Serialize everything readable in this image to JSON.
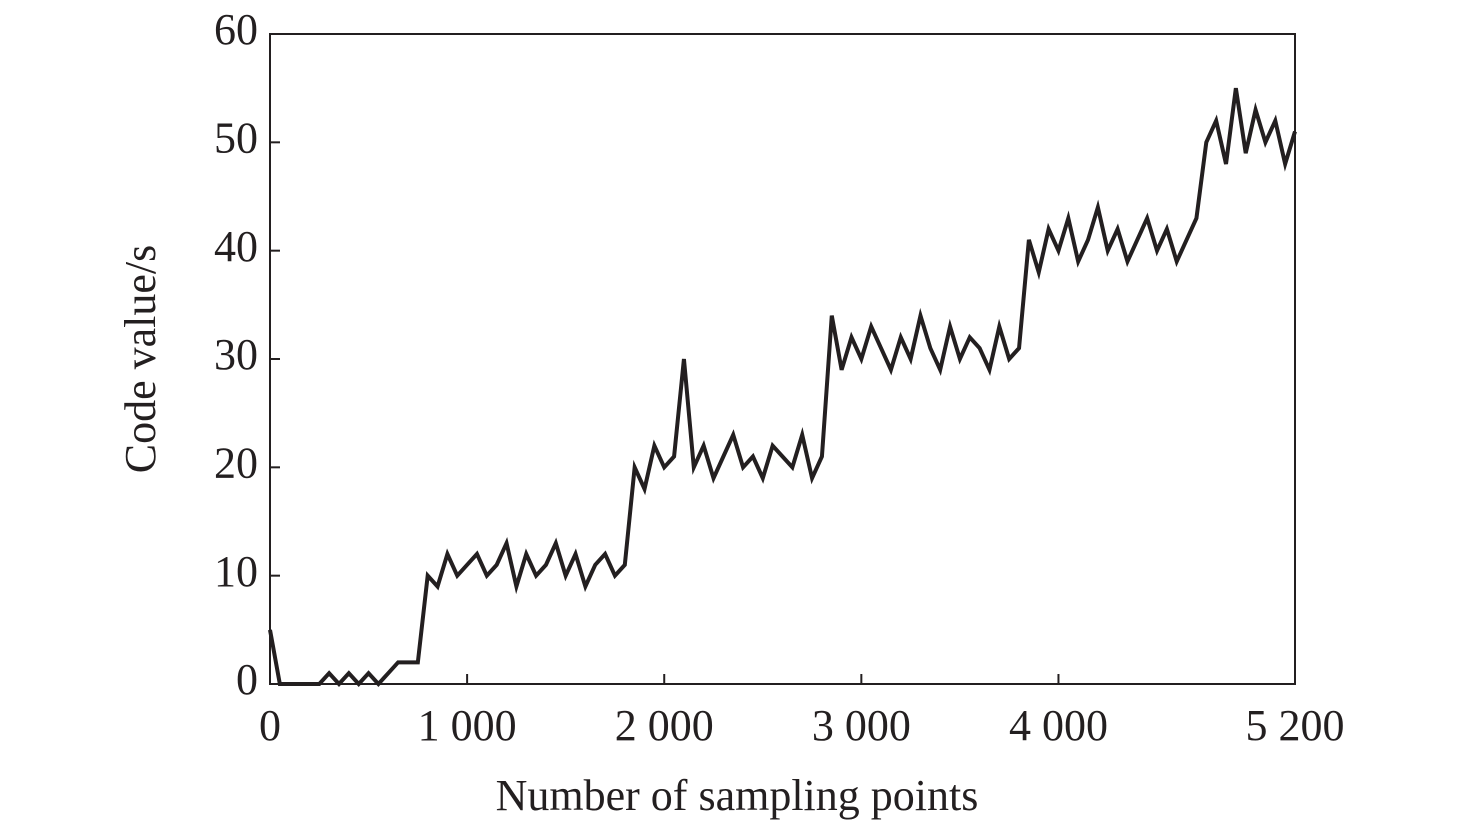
{
  "chart_data": {
    "type": "line",
    "xlabel": "Number of sampling points",
    "ylabel": "Code value/s",
    "xlim": [
      0,
      5200
    ],
    "ylim": [
      0,
      60
    ],
    "xticks": [
      0,
      {
        "value": 1000,
        "label": "1 000"
      },
      {
        "value": 2000,
        "label": "2 000"
      },
      {
        "value": 3000,
        "label": "3 000"
      },
      {
        "value": 4000,
        "label": "4 000"
      },
      {
        "value": 5200,
        "label": "5 200"
      }
    ],
    "yticks": [
      0,
      10,
      20,
      30,
      40,
      50,
      60
    ],
    "x": [
      0,
      50,
      100,
      150,
      200,
      250,
      300,
      350,
      400,
      450,
      500,
      550,
      600,
      650,
      700,
      750,
      800,
      850,
      900,
      950,
      1000,
      1050,
      1100,
      1150,
      1200,
      1250,
      1300,
      1350,
      1400,
      1450,
      1500,
      1550,
      1600,
      1650,
      1700,
      1750,
      1800,
      1850,
      1900,
      1950,
      2000,
      2050,
      2100,
      2150,
      2200,
      2250,
      2300,
      2350,
      2400,
      2450,
      2500,
      2550,
      2600,
      2650,
      2700,
      2750,
      2800,
      2850,
      2900,
      2950,
      3000,
      3050,
      3100,
      3150,
      3200,
      3250,
      3300,
      3350,
      3400,
      3450,
      3500,
      3550,
      3600,
      3650,
      3700,
      3750,
      3800,
      3850,
      3900,
      3950,
      4000,
      4050,
      4100,
      4150,
      4200,
      4250,
      4300,
      4350,
      4400,
      4450,
      4500,
      4550,
      4600,
      4650,
      4700,
      4750,
      4800,
      4850,
      4900,
      4950,
      5000,
      5050,
      5100,
      5150,
      5200
    ],
    "series": [
      {
        "color": "#231f20",
        "values": [
          5,
          0,
          0,
          0,
          0,
          0,
          1,
          0,
          1,
          0,
          1,
          0,
          1,
          2,
          2,
          2,
          10,
          9,
          12,
          10,
          11,
          12,
          10,
          11,
          13,
          9,
          12,
          10,
          11,
          13,
          10,
          12,
          9,
          11,
          12,
          10,
          11,
          20,
          18,
          22,
          20,
          21,
          30,
          20,
          22,
          19,
          21,
          23,
          20,
          21,
          19,
          22,
          21,
          20,
          23,
          19,
          21,
          34,
          29,
          32,
          30,
          33,
          31,
          29,
          32,
          30,
          34,
          31,
          29,
          33,
          30,
          32,
          31,
          29,
          33,
          30,
          31,
          41,
          38,
          42,
          40,
          43,
          39,
          41,
          44,
          40,
          42,
          39,
          41,
          43,
          40,
          42,
          39,
          41,
          43,
          50,
          52,
          48,
          55,
          49,
          53,
          50,
          52,
          48,
          51
        ]
      }
    ]
  }
}
